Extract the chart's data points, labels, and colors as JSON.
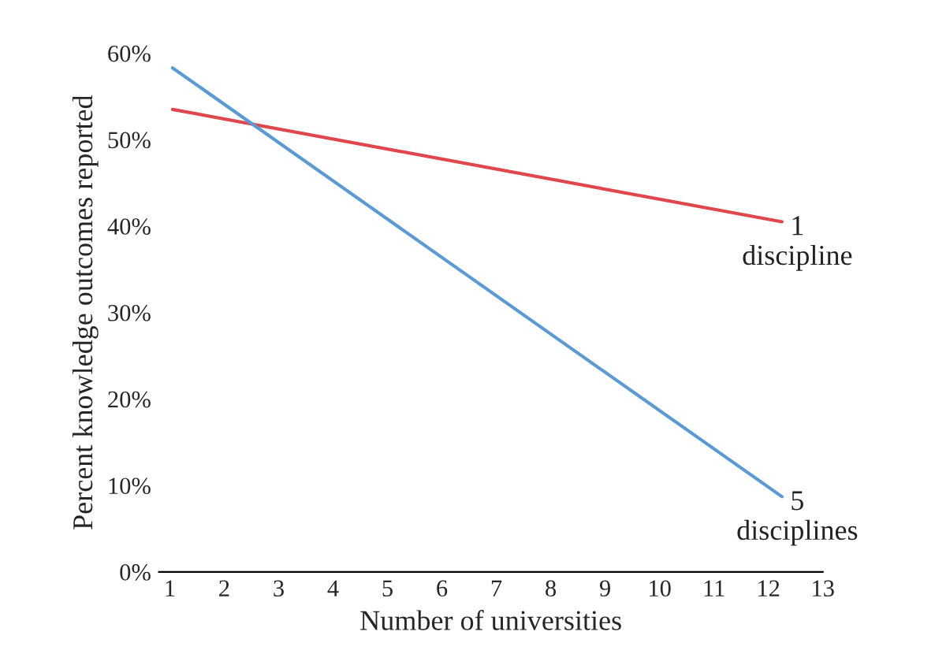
{
  "chart_data": {
    "type": "line",
    "xlabel": "Number of universities",
    "ylabel": "Percent knowledge outcomes reported",
    "x": [
      1.05,
      12.25
    ],
    "series": [
      {
        "color": "#e0474c",
        "values": [
          53.5,
          40.5
        ]
      },
      {
        "color": "#5b9bd5",
        "values": [
          58.3,
          8.7
        ]
      }
    ],
    "annotations": [
      {
        "text": "1\ndiscipline",
        "x": 12.25,
        "y": 40.5
      },
      {
        "text": "5\ndisciplines",
        "x": 12.25,
        "y": 8.7
      }
    ],
    "xlim": [
      0.8,
      13
    ],
    "xticks": [
      1,
      2,
      3,
      4,
      5,
      6,
      7,
      8,
      9,
      10,
      11,
      12,
      13
    ],
    "ylim": [
      0,
      60
    ],
    "yticks": [
      {
        "value": 0,
        "label": "0%"
      },
      {
        "value": 10,
        "label": "10%"
      },
      {
        "value": 20,
        "label": "20%"
      },
      {
        "value": 30,
        "label": "30%"
      },
      {
        "value": 40,
        "label": "40%"
      },
      {
        "value": 50,
        "label": "50%"
      },
      {
        "value": 60,
        "label": "60%"
      }
    ],
    "grid": false,
    "legend": false
  }
}
